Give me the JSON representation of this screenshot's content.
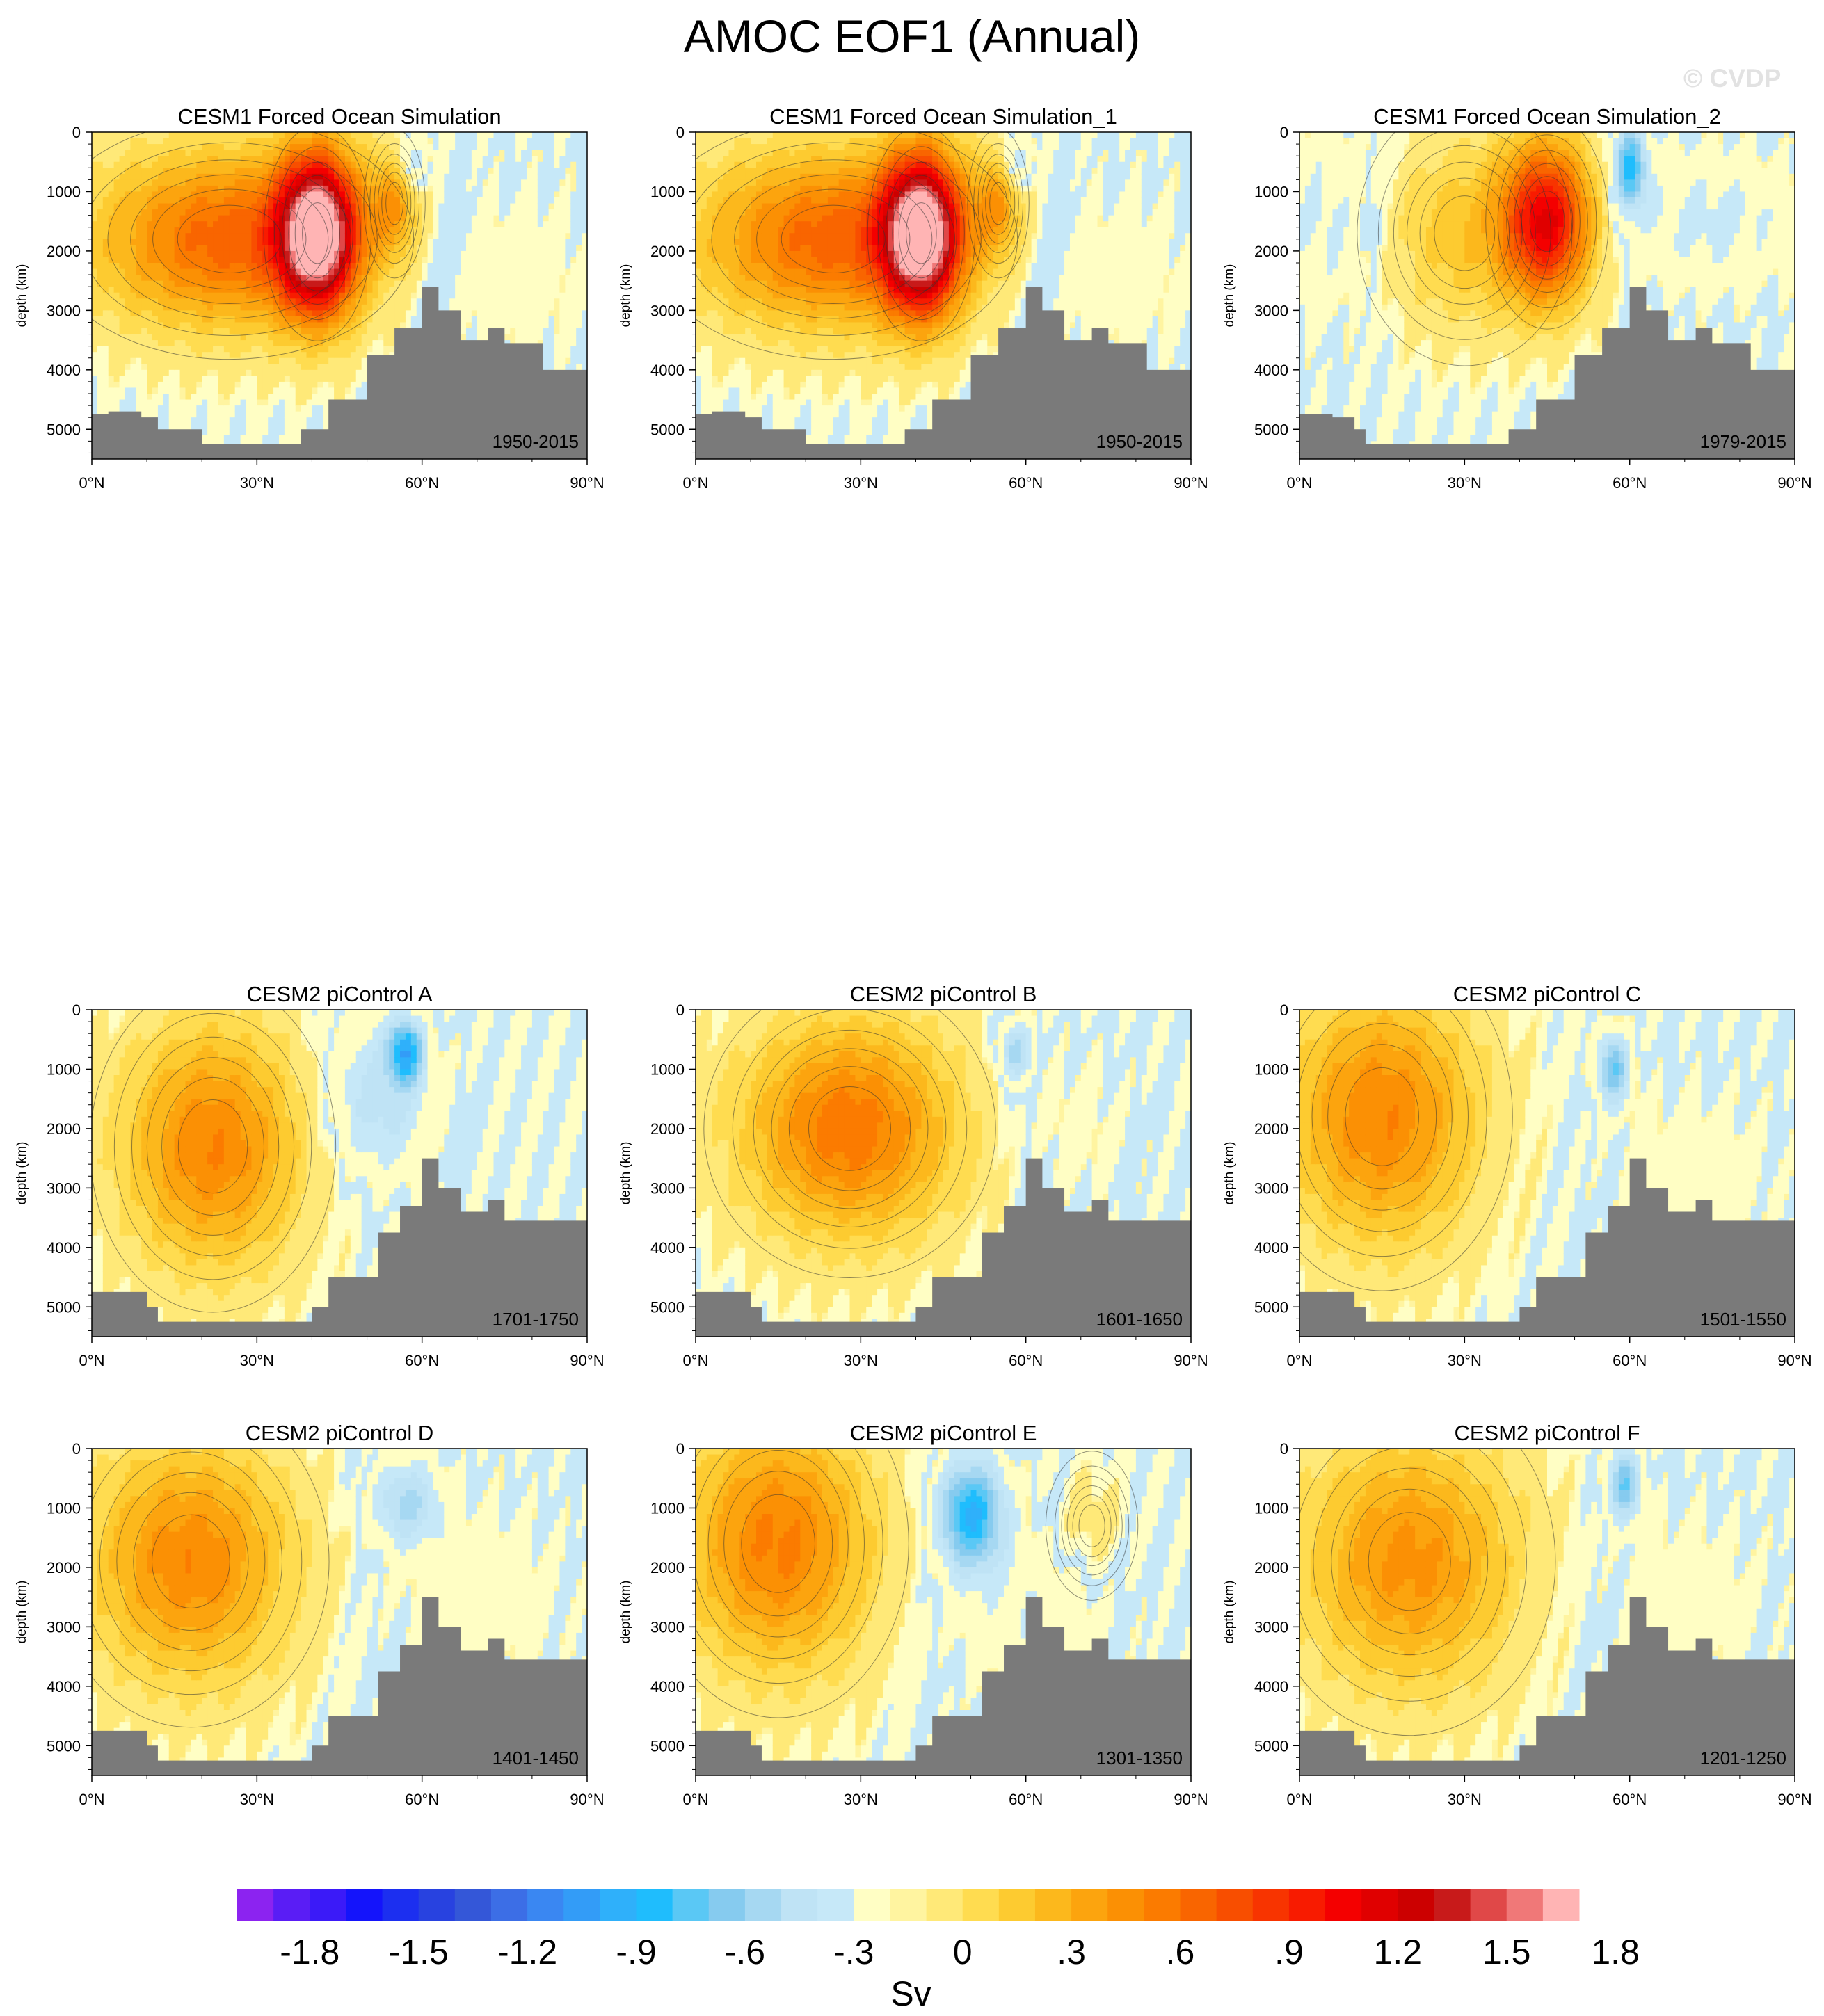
{
  "figure": {
    "title": "AMOC EOF1 (Annual)",
    "watermark": "© CVDP",
    "units_label": "Sv",
    "ylabel": "depth (km)",
    "background": "#ffffff",
    "land_color": "#7a7a7a"
  },
  "chart_data": {
    "type": "contour",
    "variable": "AMOC EOF1",
    "x_range": [
      0,
      90
    ],
    "y_range": [
      0,
      5500
    ],
    "xticks": [
      "0°N",
      "30°N",
      "60°N",
      "90°N"
    ],
    "yticks": [
      "0",
      "1000",
      "2000",
      "3000",
      "4000",
      "5000"
    ],
    "colorbar": {
      "levels_min": -2.0,
      "levels_max": 2.0,
      "step": 0.1,
      "tick_labels": [
        "-1.8",
        "-1.5",
        "-1.2",
        "-.9",
        "-.6",
        "-.3",
        "0",
        ".3",
        ".6",
        ".9",
        "1.2",
        "1.5",
        "1.8"
      ],
      "colors": [
        "#8c23f0",
        "#5a1df5",
        "#3b1af8",
        "#1414fb",
        "#1c2ff0",
        "#2842e0",
        "#3457d8",
        "#3c6ee6",
        "#3a87f2",
        "#339cf7",
        "#2fb0fa",
        "#1fbdfd",
        "#5ac8f5",
        "#86cbef",
        "#a6d8f2",
        "#bfe3f5",
        "#c6e8f8",
        "#fffec4",
        "#fff4a0",
        "#ffe978",
        "#ffdc50",
        "#fdcb30",
        "#fcb81c",
        "#fca40e",
        "#fb9004",
        "#fb7b00",
        "#f96500",
        "#f84e00",
        "#f83400",
        "#f81b00",
        "#f40000",
        "#e00000",
        "#cc0000",
        "#c81a1a",
        "#e04848",
        "#f07878",
        "#ffb4b4"
      ]
    },
    "panels": [
      {
        "title": "CESM1 Forced Ocean Simulation",
        "period": "1950-2015",
        "cells": [
          {
            "lat": 41,
            "depth": 1700,
            "amp": 2.0,
            "rx": 7,
            "ry": 1300
          },
          {
            "lat": 25,
            "depth": 1800,
            "amp": 0.9,
            "rx": 24,
            "ry": 1450
          },
          {
            "lat": 55,
            "depth": 1200,
            "amp": 0.5,
            "rx": 4,
            "ry": 900
          }
        ],
        "neg": [
          {
            "lat": 58,
            "depth": 500,
            "amp": -0.35,
            "rx": 3,
            "ry": 500
          },
          {
            "lat": 75,
            "depth": 2400,
            "amp": -0.12,
            "rx": 18,
            "ry": 1700
          }
        ],
        "land": [
          [
            0,
            4750
          ],
          [
            3,
            4700
          ],
          [
            9,
            4800
          ],
          [
            12,
            5000
          ],
          [
            20,
            5250
          ],
          [
            35,
            5250
          ],
          [
            38,
            5000
          ],
          [
            43,
            4500
          ],
          [
            50,
            3750
          ],
          [
            55,
            3300
          ],
          [
            60,
            2600
          ],
          [
            63,
            3000
          ],
          [
            67,
            3500
          ],
          [
            72,
            3300
          ],
          [
            75,
            3550
          ],
          [
            82,
            4000
          ],
          [
            90,
            4000
          ]
        ]
      },
      {
        "title": "CESM1 Forced Ocean Simulation_1",
        "period": "1950-2015",
        "cells": [
          {
            "lat": 41,
            "depth": 1700,
            "amp": 2.0,
            "rx": 7,
            "ry": 1300
          },
          {
            "lat": 25,
            "depth": 1800,
            "amp": 0.9,
            "rx": 24,
            "ry": 1450
          },
          {
            "lat": 55,
            "depth": 1200,
            "amp": 0.5,
            "rx": 4,
            "ry": 900
          }
        ],
        "neg": [
          {
            "lat": 58,
            "depth": 500,
            "amp": -0.35,
            "rx": 3,
            "ry": 500
          },
          {
            "lat": 75,
            "depth": 2400,
            "amp": -0.12,
            "rx": 18,
            "ry": 1700
          }
        ],
        "land": [
          [
            0,
            4750
          ],
          [
            3,
            4700
          ],
          [
            9,
            4800
          ],
          [
            12,
            5000
          ],
          [
            20,
            5250
          ],
          [
            35,
            5250
          ],
          [
            38,
            5000
          ],
          [
            43,
            4500
          ],
          [
            50,
            3750
          ],
          [
            55,
            3300
          ],
          [
            60,
            2600
          ],
          [
            63,
            3000
          ],
          [
            67,
            3500
          ],
          [
            72,
            3300
          ],
          [
            75,
            3550
          ],
          [
            82,
            4000
          ],
          [
            90,
            4000
          ]
        ]
      },
      {
        "title": "CESM1 Forced Ocean Simulation_2",
        "period": "1979-2015",
        "cells": [
          {
            "lat": 45,
            "depth": 1500,
            "amp": 1.35,
            "rx": 8,
            "ry": 1300
          },
          {
            "lat": 30,
            "depth": 1700,
            "amp": 0.35,
            "rx": 14,
            "ry": 1600
          }
        ],
        "neg": [
          {
            "lat": 60,
            "depth": 600,
            "amp": -0.75,
            "rx": 3,
            "ry": 700
          },
          {
            "lat": 5,
            "depth": 1500,
            "amp": -0.2,
            "rx": 10,
            "ry": 1700
          },
          {
            "lat": 75,
            "depth": 1500,
            "amp": -0.2,
            "rx": 18,
            "ry": 1200
          }
        ],
        "land": [
          [
            0,
            4750
          ],
          [
            6,
            4800
          ],
          [
            10,
            5000
          ],
          [
            12,
            5250
          ],
          [
            35,
            5250
          ],
          [
            38,
            5000
          ],
          [
            43,
            4500
          ],
          [
            50,
            3750
          ],
          [
            55,
            3300
          ],
          [
            60,
            2600
          ],
          [
            63,
            3000
          ],
          [
            67,
            3500
          ],
          [
            72,
            3300
          ],
          [
            75,
            3550
          ],
          [
            82,
            4000
          ],
          [
            90,
            4000
          ]
        ]
      },
      {
        "title": "CESM2 piControl A",
        "period": "1701-1750",
        "cells": [
          {
            "lat": 22,
            "depth": 2300,
            "amp": 0.72,
            "rx": 16,
            "ry": 2000
          }
        ],
        "neg": [
          {
            "lat": 57,
            "depth": 700,
            "amp": -0.8,
            "rx": 3,
            "ry": 500
          },
          {
            "lat": 52,
            "depth": 1500,
            "amp": -0.35,
            "rx": 10,
            "ry": 1300
          }
        ],
        "land": [
          [
            0,
            4750
          ],
          [
            6,
            4750
          ],
          [
            10,
            5000
          ],
          [
            12,
            5250
          ],
          [
            36,
            5250
          ],
          [
            40,
            5000
          ],
          [
            43,
            4500
          ],
          [
            52,
            3750
          ],
          [
            56,
            3300
          ],
          [
            60,
            2500
          ],
          [
            63,
            3000
          ],
          [
            67,
            3400
          ],
          [
            72,
            3200
          ],
          [
            75,
            3550
          ],
          [
            90,
            3550
          ]
        ]
      },
      {
        "title": "CESM2 piControl B",
        "period": "1601-1650",
        "cells": [
          {
            "lat": 28,
            "depth": 2000,
            "amp": 0.8,
            "rx": 19,
            "ry": 1800
          }
        ],
        "neg": [
          {
            "lat": 58,
            "depth": 700,
            "amp": -0.45,
            "rx": 3,
            "ry": 500
          },
          {
            "lat": 68,
            "depth": 2000,
            "amp": -0.1,
            "rx": 12,
            "ry": 1500
          }
        ],
        "land": [
          [
            0,
            4750
          ],
          [
            6,
            4750
          ],
          [
            10,
            5000
          ],
          [
            12,
            5250
          ],
          [
            36,
            5250
          ],
          [
            40,
            5000
          ],
          [
            43,
            4500
          ],
          [
            52,
            3750
          ],
          [
            56,
            3300
          ],
          [
            60,
            2500
          ],
          [
            63,
            3000
          ],
          [
            67,
            3400
          ],
          [
            72,
            3200
          ],
          [
            75,
            3550
          ],
          [
            90,
            3550
          ]
        ]
      },
      {
        "title": "CESM2 piControl C",
        "period": "1501-1550",
        "cells": [
          {
            "lat": 15,
            "depth": 1800,
            "amp": 0.72,
            "rx": 17,
            "ry": 2100
          }
        ],
        "neg": [
          {
            "lat": 57,
            "depth": 1000,
            "amp": -0.6,
            "rx": 3,
            "ry": 600
          },
          {
            "lat": 72,
            "depth": 2800,
            "amp": -0.12,
            "rx": 16,
            "ry": 1600
          }
        ],
        "land": [
          [
            0,
            4750
          ],
          [
            6,
            4750
          ],
          [
            10,
            5000
          ],
          [
            12,
            5250
          ],
          [
            36,
            5250
          ],
          [
            40,
            5000
          ],
          [
            43,
            4500
          ],
          [
            52,
            3750
          ],
          [
            56,
            3300
          ],
          [
            60,
            2500
          ],
          [
            63,
            3000
          ],
          [
            67,
            3400
          ],
          [
            72,
            3200
          ],
          [
            75,
            3550
          ],
          [
            90,
            3550
          ]
        ]
      },
      {
        "title": "CESM2 piControl D",
        "period": "1401-1450",
        "cells": [
          {
            "lat": 18,
            "depth": 1900,
            "amp": 0.7,
            "rx": 18,
            "ry": 2000
          }
        ],
        "neg": [
          {
            "lat": 57,
            "depth": 900,
            "amp": -0.4,
            "rx": 6,
            "ry": 700
          },
          {
            "lat": 70,
            "depth": 2500,
            "amp": -0.12,
            "rx": 18,
            "ry": 1800
          }
        ],
        "land": [
          [
            0,
            4750
          ],
          [
            6,
            4750
          ],
          [
            10,
            5000
          ],
          [
            12,
            5250
          ],
          [
            36,
            5250
          ],
          [
            40,
            5000
          ],
          [
            43,
            4500
          ],
          [
            52,
            3750
          ],
          [
            56,
            3300
          ],
          [
            60,
            2500
          ],
          [
            63,
            3000
          ],
          [
            67,
            3400
          ],
          [
            72,
            3200
          ],
          [
            75,
            3550
          ],
          [
            90,
            3550
          ]
        ]
      },
      {
        "title": "CESM2 piControl E",
        "period": "1301-1350",
        "cells": [
          {
            "lat": 15,
            "depth": 1600,
            "amp": 0.75,
            "rx": 17,
            "ry": 2100
          },
          {
            "lat": 72,
            "depth": 1300,
            "amp": 0.12,
            "rx": 6,
            "ry": 900
          }
        ],
        "neg": [
          {
            "lat": 50,
            "depth": 1100,
            "amp": -0.85,
            "rx": 6,
            "ry": 900
          },
          {
            "lat": 60,
            "depth": 2800,
            "amp": -0.15,
            "rx": 16,
            "ry": 1400
          }
        ],
        "land": [
          [
            0,
            4750
          ],
          [
            6,
            4750
          ],
          [
            10,
            5000
          ],
          [
            12,
            5250
          ],
          [
            36,
            5250
          ],
          [
            40,
            5000
          ],
          [
            43,
            4500
          ],
          [
            52,
            3750
          ],
          [
            56,
            3300
          ],
          [
            60,
            2500
          ],
          [
            63,
            3000
          ],
          [
            67,
            3400
          ],
          [
            72,
            3200
          ],
          [
            75,
            3550
          ],
          [
            90,
            3550
          ]
        ]
      },
      {
        "title": "CESM2 piControl F",
        "period": "1201-1250",
        "cells": [
          {
            "lat": 20,
            "depth": 1900,
            "amp": 0.65,
            "rx": 19,
            "ry": 2100
          }
        ],
        "neg": [
          {
            "lat": 59,
            "depth": 600,
            "amp": -0.6,
            "rx": 3,
            "ry": 600
          },
          {
            "lat": 70,
            "depth": 2600,
            "amp": -0.12,
            "rx": 16,
            "ry": 1700
          }
        ],
        "land": [
          [
            0,
            4750
          ],
          [
            6,
            4750
          ],
          [
            10,
            5000
          ],
          [
            12,
            5250
          ],
          [
            36,
            5250
          ],
          [
            40,
            5000
          ],
          [
            43,
            4500
          ],
          [
            52,
            3750
          ],
          [
            56,
            3300
          ],
          [
            60,
            2500
          ],
          [
            63,
            3000
          ],
          [
            67,
            3400
          ],
          [
            72,
            3200
          ],
          [
            75,
            3550
          ],
          [
            90,
            3550
          ]
        ]
      }
    ]
  }
}
